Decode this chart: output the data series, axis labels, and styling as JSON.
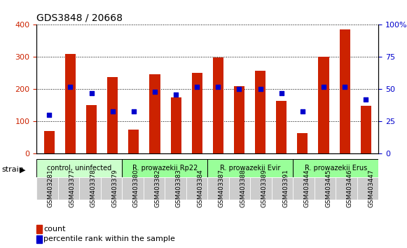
{
  "title": "GDS3848 / 20668",
  "samples": [
    "GSM403281",
    "GSM403377",
    "GSM403378",
    "GSM403379",
    "GSM403380",
    "GSM403382",
    "GSM403383",
    "GSM403384",
    "GSM403387",
    "GSM403388",
    "GSM403389",
    "GSM403391",
    "GSM403444",
    "GSM403445",
    "GSM403446",
    "GSM403447"
  ],
  "counts": [
    70,
    310,
    150,
    237,
    75,
    246,
    175,
    252,
    298,
    210,
    257,
    165,
    65,
    300,
    385,
    148
  ],
  "percentiles": [
    30,
    52,
    47,
    33,
    33,
    48,
    46,
    52,
    52,
    50,
    50,
    47,
    33,
    52,
    52,
    42
  ],
  "groups": [
    {
      "label": "control, uninfected",
      "start": 0,
      "end": 3,
      "color": "#ccffcc"
    },
    {
      "label": "R. prowazekii Rp22",
      "start": 4,
      "end": 7,
      "color": "#99ff99"
    },
    {
      "label": "R. prowazekii Evir",
      "start": 8,
      "end": 11,
      "color": "#99ff99"
    },
    {
      "label": "R. prowazekii Erus",
      "start": 12,
      "end": 15,
      "color": "#99ff99"
    }
  ],
  "ylim_left": [
    0,
    400
  ],
  "ylim_right": [
    0,
    100
  ],
  "yticks_left": [
    0,
    100,
    200,
    300,
    400
  ],
  "yticks_right": [
    0,
    25,
    50,
    75,
    100
  ],
  "bar_color": "#cc2200",
  "dot_color": "#0000cc",
  "grid_color": "#000000",
  "bg_color": "#ffffff",
  "tick_label_color_left": "#cc2200",
  "tick_label_color_right": "#0000cc"
}
